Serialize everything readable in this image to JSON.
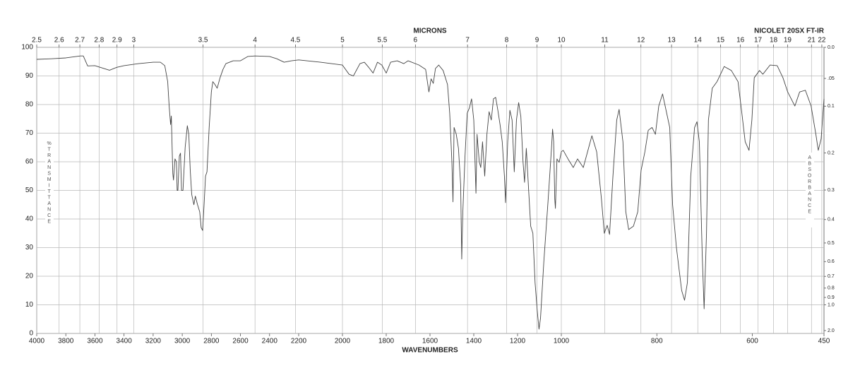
{
  "chart_data": {
    "type": "line",
    "title": "NICOLET 20SX FT-IR",
    "xlabel": "WAVENUMBERS",
    "x2label": "MICRONS",
    "ylabel": "%TRANSMITTANCE",
    "y2label": "ABSORBANCE",
    "color": "#444444",
    "grid": true,
    "xlim": [
      4000,
      450
    ],
    "xticks": [
      4000,
      3800,
      3600,
      3400,
      3200,
      3000,
      2800,
      2600,
      2400,
      2200,
      2000,
      1800,
      1600,
      1400,
      1200,
      1000,
      800,
      600,
      450
    ],
    "x2scale": "microns",
    "x2ticks": [
      2.5,
      2.6,
      2.7,
      2.8,
      2.9,
      3,
      3.5,
      4,
      4.5,
      5,
      5.5,
      6,
      7,
      8,
      9,
      10,
      11,
      12,
      13,
      14,
      15,
      16,
      17,
      18,
      19,
      21,
      22
    ],
    "ylim": [
      0,
      100
    ],
    "yticks": [
      0,
      10,
      20,
      30,
      40,
      50,
      60,
      70,
      80,
      90,
      100
    ],
    "y2scale": "absorbance",
    "y2ticks": [
      {
        "value": 0,
        "label": "0.0"
      },
      {
        "value": 0.05,
        "label": ".05"
      },
      0.1,
      0.2,
      0.3,
      0.4,
      0.5,
      0.6,
      0.7,
      0.8,
      0.9,
      {
        "value": 1,
        "label": "1.0"
      },
      {
        "value": 2,
        "label": "2.0"
      }
    ],
    "x": [
      4000,
      3900,
      3800,
      3700,
      3680,
      3650,
      3600,
      3500,
      3450,
      3400,
      3300,
      3200,
      3150,
      3120,
      3100,
      3090,
      3080,
      3075,
      3065,
      3060,
      3050,
      3040,
      3035,
      3030,
      3020,
      3012,
      3005,
      2995,
      2980,
      2965,
      2955,
      2945,
      2935,
      2920,
      2910,
      2895,
      2880,
      2870,
      2860,
      2850,
      2840,
      2830,
      2815,
      2800,
      2790,
      2775,
      2760,
      2740,
      2720,
      2700,
      2650,
      2600,
      2550,
      2500,
      2400,
      2350,
      2300,
      2250,
      2200,
      2100,
      2050,
      2000,
      1970,
      1950,
      1920,
      1900,
      1880,
      1860,
      1840,
      1820,
      1800,
      1780,
      1750,
      1720,
      1700,
      1650,
      1620,
      1610,
      1605,
      1595,
      1585,
      1575,
      1560,
      1540,
      1520,
      1510,
      1500,
      1495,
      1490,
      1480,
      1470,
      1460,
      1455,
      1450,
      1440,
      1430,
      1420,
      1410,
      1400,
      1390,
      1385,
      1375,
      1368,
      1360,
      1350,
      1340,
      1330,
      1320,
      1310,
      1300,
      1290,
      1280,
      1270,
      1260,
      1255,
      1245,
      1235,
      1225,
      1215,
      1205,
      1195,
      1185,
      1175,
      1168,
      1160,
      1150,
      1140,
      1130,
      1120,
      1110,
      1102,
      1095,
      1080,
      1060,
      1045,
      1040,
      1035,
      1030,
      1027,
      1020,
      1010,
      1000,
      996,
      985,
      975,
      966,
      954,
      936,
      926,
      916,
      910,
      904,
      899,
      892,
      884,
      879,
      871,
      865,
      859,
      849,
      840,
      833,
      825,
      818,
      810,
      803,
      796,
      788,
      773,
      767,
      759,
      748,
      742,
      736,
      729,
      721,
      716,
      711,
      705,
      701,
      696,
      692,
      684,
      674,
      659,
      644,
      630,
      622,
      615,
      607,
      601,
      596,
      585,
      578,
      563,
      548,
      536,
      526,
      511,
      501,
      489,
      477,
      467,
      462,
      456,
      450
    ],
    "values": [
      95.8,
      96,
      96.3,
      97,
      97,
      93.5,
      93.6,
      92,
      93,
      93.6,
      94.3,
      94.8,
      94.8,
      93.6,
      88,
      79.5,
      73,
      76,
      56,
      53.6,
      61,
      60,
      50,
      50,
      62,
      63,
      50,
      50,
      65,
      72.6,
      69.6,
      57,
      48.6,
      45,
      48,
      45,
      42.5,
      37,
      36,
      45,
      55,
      56.5,
      72,
      84.4,
      88,
      87,
      85.7,
      89.4,
      92.3,
      94.3,
      95.3,
      95.3,
      96.8,
      97,
      96.8,
      96,
      94.8,
      95.3,
      95.6,
      94.8,
      94.3,
      93.8,
      90.6,
      90,
      94.3,
      94.8,
      93,
      91,
      94.8,
      93.8,
      91,
      94.8,
      95.3,
      94.3,
      95.3,
      93.8,
      92.3,
      87,
      84.4,
      89,
      87.4,
      92.6,
      93.8,
      91.9,
      87,
      77,
      60,
      46,
      72,
      69.6,
      64.7,
      52,
      26,
      42.5,
      62,
      77,
      78.8,
      82,
      74.6,
      49,
      69.6,
      60,
      58,
      67,
      55,
      69.6,
      77.5,
      74.6,
      82,
      82.5,
      78,
      73,
      67,
      55,
      45.7,
      67,
      78,
      74.6,
      56.5,
      74.6,
      80.7,
      75.8,
      60,
      52.8,
      64.7,
      51,
      37.5,
      35,
      17.8,
      7.9,
      1.5,
      5.4,
      25,
      47,
      64.7,
      71.4,
      67,
      47,
      43.7,
      61,
      59.8,
      63.5,
      64,
      60.7,
      58,
      61,
      58,
      69.1,
      63.5,
      47,
      35,
      37.8,
      34.6,
      54.8,
      74.6,
      78.3,
      67,
      42.5,
      36.3,
      37.5,
      42.5,
      57,
      63.5,
      71,
      72,
      69.6,
      79.5,
      83.7,
      72,
      45,
      30,
      15,
      11.6,
      17.8,
      55,
      72,
      74,
      67,
      27.6,
      8.6,
      35,
      74.6,
      85.7,
      88,
      93.3,
      91.9,
      88,
      77,
      67,
      64,
      74.6,
      89.4,
      91.9,
      90.6,
      93.8,
      93.6,
      89.4,
      84.4,
      79.5,
      84.4,
      85,
      79.5,
      69.6,
      64,
      68,
      82
    ]
  }
}
